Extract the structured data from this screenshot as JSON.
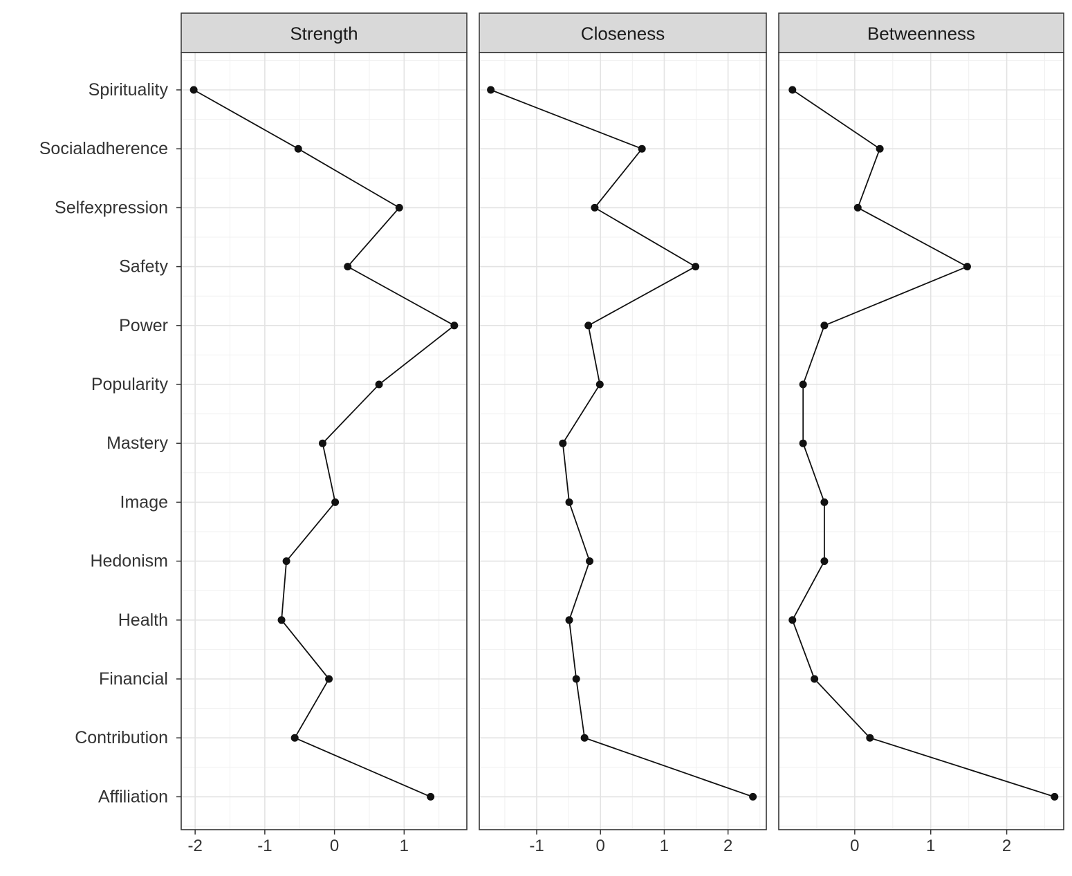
{
  "chart_data": {
    "type": "line",
    "categories": [
      "Spirituality",
      "Socialadherence",
      "Selfexpression",
      "Safety",
      "Power",
      "Popularity",
      "Mastery",
      "Image",
      "Hedonism",
      "Health",
      "Financial",
      "Contribution",
      "Affiliation"
    ],
    "panels": [
      {
        "name": "Strength",
        "xlim": [
          -2.2,
          1.9
        ],
        "xticks": [
          -2,
          -1,
          0,
          1
        ],
        "xtick_labels": [
          "-2",
          "-1",
          "0",
          "1"
        ],
        "values": [
          -2.02,
          -0.52,
          0.93,
          0.19,
          1.72,
          0.64,
          -0.17,
          0.01,
          -0.69,
          -0.76,
          -0.08,
          -0.57,
          1.38
        ]
      },
      {
        "name": "Closeness",
        "xlim": [
          -1.9,
          2.6
        ],
        "xticks": [
          -1,
          0,
          1,
          2
        ],
        "xtick_labels": [
          "-1",
          "0",
          "1",
          "2"
        ],
        "values": [
          -1.72,
          0.65,
          -0.09,
          1.49,
          -0.19,
          -0.01,
          -0.59,
          -0.49,
          -0.17,
          -0.49,
          -0.38,
          -0.25,
          2.39
        ]
      },
      {
        "name": "Betweenness",
        "xlim": [
          -1.0,
          2.75
        ],
        "xticks": [
          0,
          1,
          2
        ],
        "xtick_labels": [
          "0",
          "1",
          "2"
        ],
        "values": [
          -0.82,
          0.33,
          0.04,
          1.48,
          -0.4,
          -0.68,
          -0.68,
          -0.4,
          -0.4,
          -0.82,
          -0.53,
          0.2,
          2.63
        ]
      }
    ],
    "grid": true,
    "legend": "none"
  },
  "colors": {
    "strip": "#d9d9d9",
    "line": "#111111",
    "grid": "#e3e3e3"
  }
}
